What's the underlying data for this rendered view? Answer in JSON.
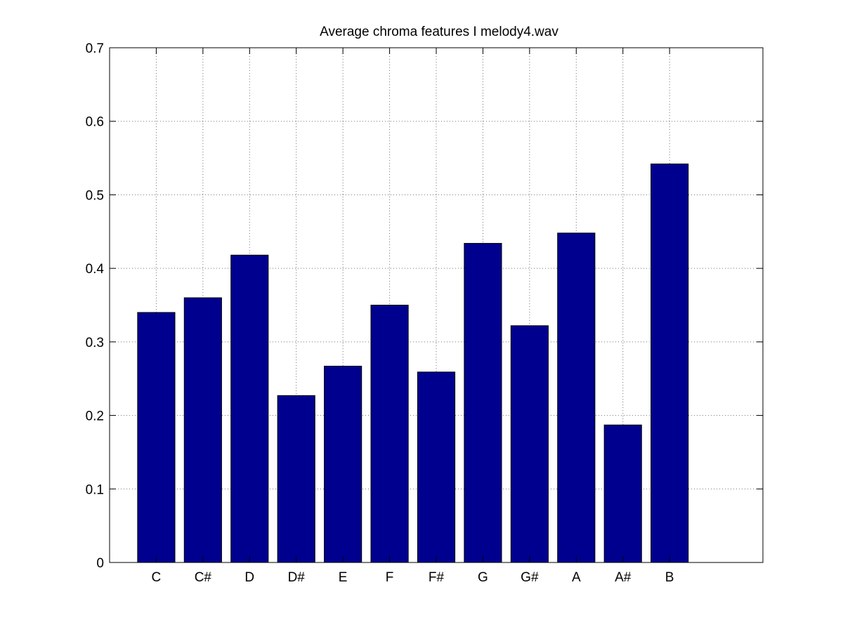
{
  "chart_data": {
    "type": "bar",
    "title": "Average chroma features I melody4.wav",
    "xlabel": "",
    "ylabel": "",
    "categories": [
      "C",
      "C#",
      "D",
      "D#",
      "E",
      "F",
      "F#",
      "G",
      "G#",
      "A",
      "A#",
      "B"
    ],
    "values": [
      0.34,
      0.36,
      0.418,
      0.227,
      0.267,
      0.35,
      0.259,
      0.434,
      0.322,
      0.448,
      0.187,
      0.542
    ],
    "ylim": [
      0,
      0.7
    ],
    "xlim": [
      0,
      14
    ],
    "yticks": [
      0,
      0.1,
      0.2,
      0.3,
      0.4,
      0.5,
      0.6,
      0.7
    ],
    "ytick_labels": [
      "0",
      "0.1",
      "0.2",
      "0.3",
      "0.4",
      "0.5",
      "0.6",
      "0.7"
    ],
    "grid": true,
    "colors": {
      "bar": "#00008f",
      "axes": "#000000",
      "background": "#ffffff"
    }
  }
}
